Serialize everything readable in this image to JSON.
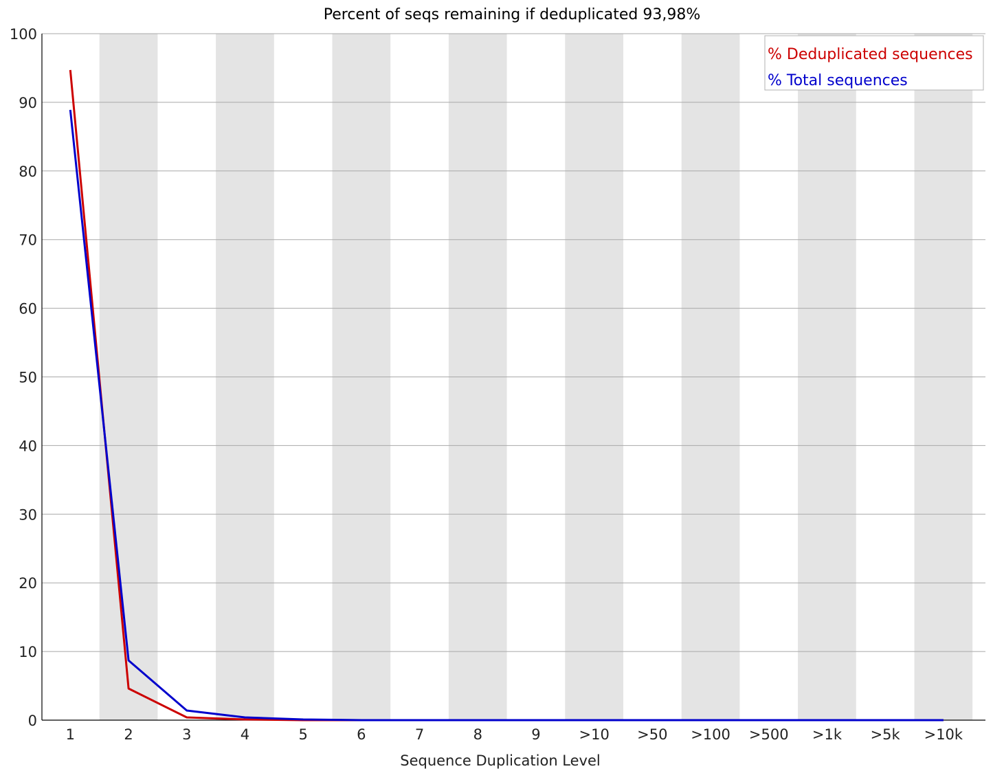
{
  "chart_data": {
    "type": "line",
    "title": "Percent of seqs remaining if deduplicated 93,98%",
    "xlabel": "Sequence Duplication Level",
    "ylabel": "",
    "ylim": [
      0,
      100
    ],
    "yticks": [
      "0",
      "10",
      "20",
      "30",
      "40",
      "50",
      "60",
      "70",
      "80",
      "90",
      "100"
    ],
    "categories": [
      "1",
      "2",
      "3",
      "4",
      "5",
      "6",
      "7",
      "8",
      "9",
      ">10",
      ">50",
      ">100",
      ">500",
      ">1k",
      ">5k",
      ">10k"
    ],
    "grid": true,
    "alternating_bands": true,
    "legend_position": "top-right",
    "series": [
      {
        "name": "% Deduplicated sequences",
        "color": "#cc0000",
        "values": [
          94.7,
          4.6,
          0.4,
          0.1,
          0.0,
          0.0,
          0.0,
          0.0,
          0.0,
          0.0,
          0.0,
          0.0,
          0.0,
          0.0,
          0.0,
          0.0
        ]
      },
      {
        "name": "% Total sequences",
        "color": "#0000cc",
        "values": [
          88.9,
          8.7,
          1.4,
          0.4,
          0.1,
          0.0,
          0.0,
          0.0,
          0.0,
          0.0,
          0.0,
          0.0,
          0.0,
          0.0,
          0.0,
          0.0
        ]
      }
    ]
  }
}
